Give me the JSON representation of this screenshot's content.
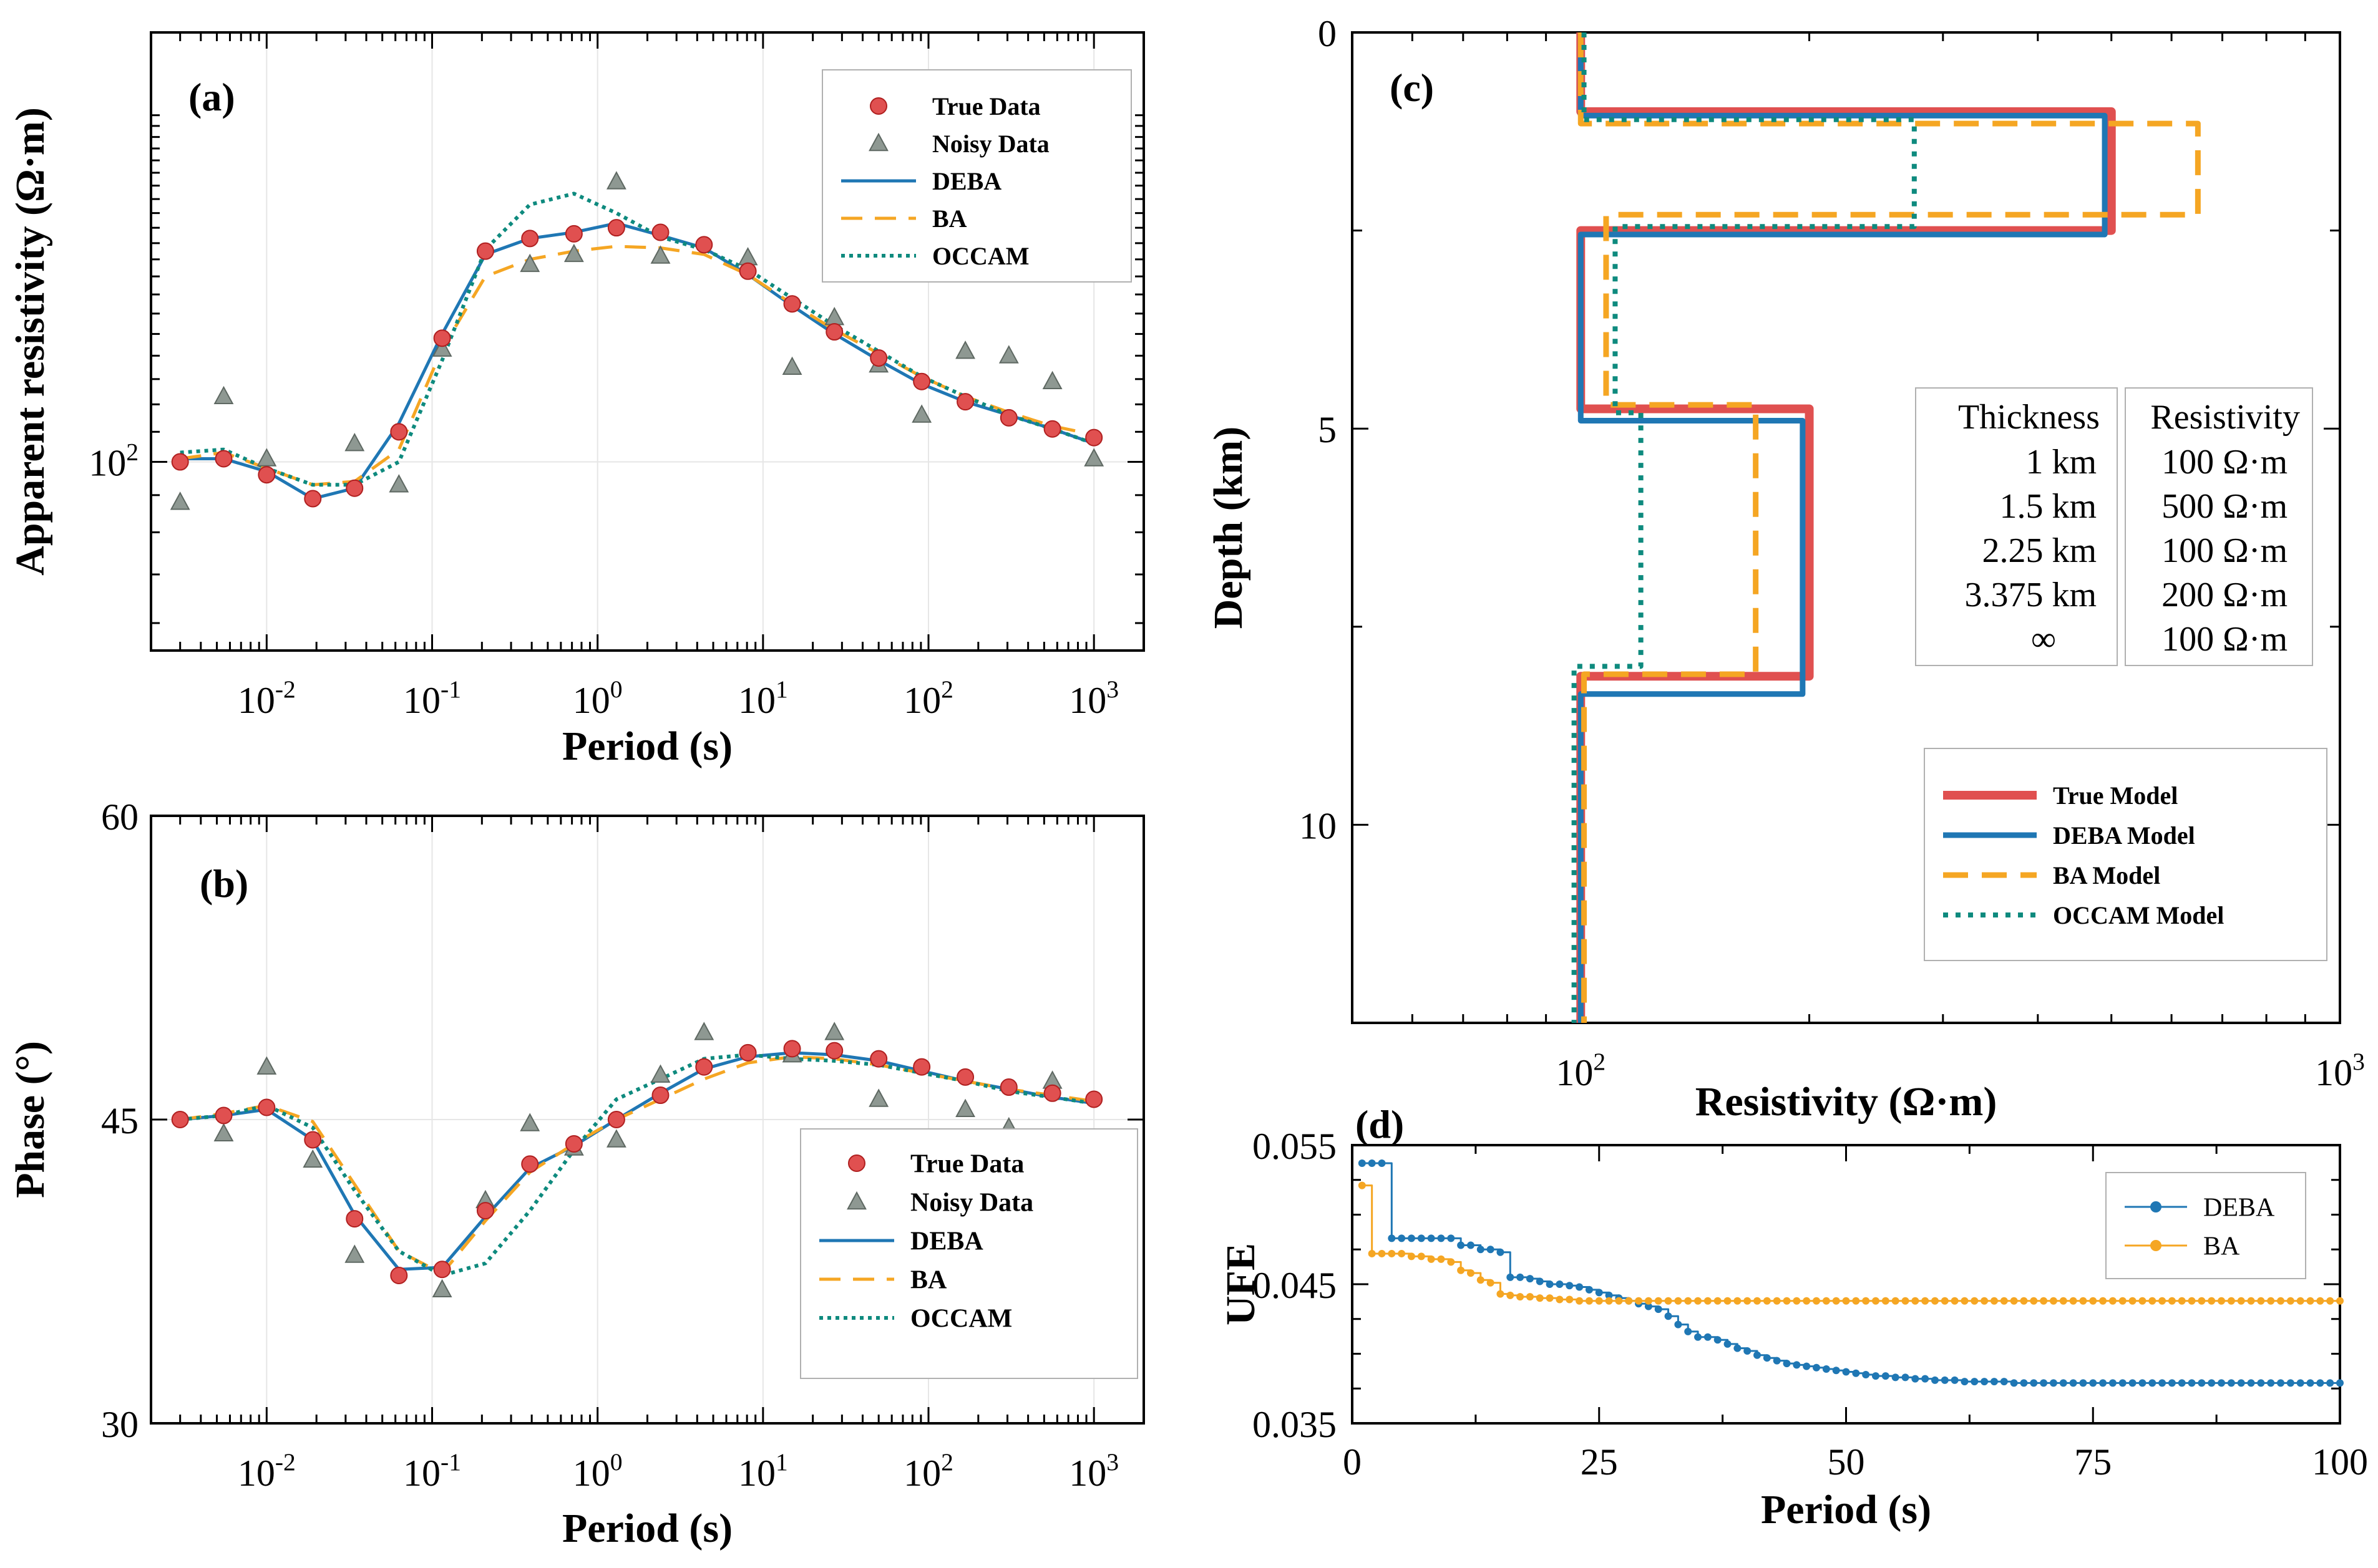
{
  "colors": {
    "true": "#e05050",
    "deba": "#1f77b4",
    "ba": "#f5a623",
    "occam": "#0e8a7e",
    "noisy": "#8e9892"
  },
  "chart_data": [
    {
      "panel_label": "(a)",
      "type": "line",
      "xlabel": "Period (s)",
      "ylabel": "Apparent resistivity (Ω·m)",
      "xscale": "log",
      "yscale": "log",
      "xlim": [
        0.002,
        2000
      ],
      "ylim": [
        55,
        390
      ],
      "x_tick_labels": [
        {
          "base": "10",
          "exp": "-2"
        },
        {
          "base": "10",
          "exp": "-1"
        },
        {
          "base": "10",
          "exp": "0"
        },
        {
          "base": "10",
          "exp": "1"
        },
        {
          "base": "10",
          "exp": "2"
        },
        {
          "base": "10",
          "exp": "3"
        }
      ],
      "y_tick_labels": [
        {
          "base": "10",
          "exp": "2"
        }
      ],
      "legend": [
        "True Data",
        "Noisy Data",
        "DEBA",
        "BA",
        "OCCAM"
      ],
      "x": [
        0.003,
        0.0055,
        0.01,
        0.019,
        0.034,
        0.063,
        0.115,
        0.21,
        0.39,
        0.72,
        1.3,
        2.4,
        4.4,
        8.1,
        15,
        27,
        50,
        91,
        167,
        306,
        561,
        1000
      ],
      "series": [
        {
          "name": "True Data",
          "values": [
            100,
            101,
            96,
            89,
            92,
            110,
            148,
            195,
            203,
            206,
            210,
            207,
            199,
            183,
            165,
            151,
            139,
            129,
            121,
            115,
            111,
            108
          ]
        },
        {
          "name": "Noisy Data",
          "values": [
            88,
            123,
            101,
            null,
            106,
            93,
            143,
            null,
            187,
            193,
            243,
            192,
            null,
            191,
            135,
            158,
            136,
            116,
            142,
            140,
            129,
            101
          ]
        },
        {
          "name": "DEBA",
          "values": [
            101,
            101,
            97,
            89,
            92,
            113,
            150,
            193,
            203,
            207,
            213,
            205,
            197,
            181,
            164,
            150,
            138,
            128,
            121,
            116,
            111,
            106
          ]
        },
        {
          "name": "BA",
          "values": [
            101,
            103,
            98,
            93,
            94,
            104,
            143,
            180,
            190,
            195,
            198,
            197,
            193,
            181,
            165,
            152,
            141,
            131,
            123,
            117,
            112,
            109
          ]
        },
        {
          "name": "OCCAM",
          "values": [
            103,
            104,
            98,
            93,
            93,
            100,
            138,
            196,
            226,
            234,
            220,
            204,
            196,
            184,
            168,
            154,
            142,
            131,
            123,
            116,
            111,
            106
          ]
        }
      ]
    },
    {
      "panel_label": "(b)",
      "type": "line",
      "xlabel": "Period (s)",
      "ylabel": "Phase (°)",
      "xscale": "log",
      "xlim": [
        0.002,
        2000
      ],
      "ylim": [
        30,
        60
      ],
      "x_tick_labels": [
        {
          "base": "10",
          "exp": "-2"
        },
        {
          "base": "10",
          "exp": "-1"
        },
        {
          "base": "10",
          "exp": "0"
        },
        {
          "base": "10",
          "exp": "1"
        },
        {
          "base": "10",
          "exp": "2"
        },
        {
          "base": "10",
          "exp": "3"
        }
      ],
      "y_tick_labels": [
        "30",
        "45",
        "60"
      ],
      "legend": [
        "True Data",
        "Noisy Data",
        "DEBA",
        "BA",
        "OCCAM"
      ],
      "x": [
        0.003,
        0.0055,
        0.01,
        0.019,
        0.034,
        0.063,
        0.115,
        0.21,
        0.39,
        0.72,
        1.3,
        2.4,
        4.4,
        8.1,
        15,
        27,
        50,
        91,
        167,
        306,
        561,
        1000
      ],
      "series": [
        {
          "name": "True Data",
          "values": [
            45,
            45.2,
            45.6,
            44,
            40.1,
            37.3,
            37.6,
            40.5,
            42.8,
            43.8,
            45,
            46.2,
            47.6,
            48.3,
            48.5,
            48.4,
            48,
            47.6,
            47.1,
            46.6,
            46.3,
            46
          ]
        },
        {
          "name": "Noisy Data",
          "values": [
            null,
            44.3,
            47.6,
            43,
            38.3,
            null,
            36.6,
            41,
            44.8,
            43.6,
            44,
            47.2,
            49.3,
            null,
            48.2,
            49.3,
            46,
            null,
            45.5,
            44.6,
            46.9,
            43.9
          ]
        },
        {
          "name": "DEBA",
          "values": [
            45,
            45.2,
            45.5,
            44,
            40.3,
            37.6,
            37.7,
            40.2,
            42.6,
            43.7,
            45,
            46.3,
            47.5,
            48.1,
            48.3,
            48.2,
            47.9,
            47.4,
            46.9,
            46.5,
            46.1,
            45.8
          ]
        },
        {
          "name": "BA",
          "values": [
            45,
            45.3,
            45.7,
            44.9,
            41.8,
            38.5,
            37.4,
            40,
            42.4,
            43.8,
            45,
            46,
            47,
            47.8,
            48.1,
            48,
            47.7,
            47.3,
            46.9,
            46.5,
            46.2,
            45.9
          ]
        },
        {
          "name": "OCCAM",
          "values": [
            45,
            45.2,
            45.7,
            44.6,
            41.5,
            38.5,
            37.3,
            37.9,
            40.5,
            43.5,
            46,
            47,
            48,
            48.2,
            48,
            47.9,
            47.7,
            47.3,
            46.9,
            46.4,
            46.1,
            45.8
          ]
        }
      ]
    },
    {
      "panel_label": "(c)",
      "type": "step",
      "xlabel": "Resistivity (Ω·m)",
      "ylabel": "Depth (km)",
      "xscale": "log",
      "xlim": [
        50,
        1000
      ],
      "ylim": [
        12.5,
        0
      ],
      "x_tick_labels": [
        {
          "base": "10",
          "exp": "2"
        },
        {
          "base": "10",
          "exp": "3"
        }
      ],
      "y_tick_labels": [
        "0",
        "5",
        "10"
      ],
      "legend": [
        "True Model",
        "DEBA Model",
        "BA Model",
        "OCCAM Model"
      ],
      "table": {
        "headers": [
          "Thickness",
          "Resistivity"
        ],
        "thickness": [
          "1 km",
          "1.5 km",
          "2.25 km",
          "3.375 km",
          "∞"
        ],
        "resistivity": [
          "100 Ω·m",
          "500 Ω·m",
          "100 Ω·m",
          "200 Ω·m",
          "100 Ω·m"
        ]
      },
      "series": [
        {
          "name": "True Model",
          "layers": [
            {
              "top": 0,
              "bottom": 1,
              "rho": 100
            },
            {
              "top": 1,
              "bottom": 2.5,
              "rho": 500
            },
            {
              "top": 2.5,
              "bottom": 4.75,
              "rho": 100
            },
            {
              "top": 4.75,
              "bottom": 8.125,
              "rho": 200
            },
            {
              "top": 8.125,
              "bottom": 12.5,
              "rho": 100
            }
          ]
        },
        {
          "name": "DEBA Model",
          "layers": [
            {
              "top": 0,
              "bottom": 1.05,
              "rho": 100
            },
            {
              "top": 1.05,
              "bottom": 2.55,
              "rho": 490
            },
            {
              "top": 2.55,
              "bottom": 4.9,
              "rho": 100
            },
            {
              "top": 4.9,
              "bottom": 8.35,
              "rho": 196
            },
            {
              "top": 8.35,
              "bottom": 12.5,
              "rho": 100
            }
          ]
        },
        {
          "name": "BA Model",
          "layers": [
            {
              "top": 0,
              "bottom": 1.15,
              "rho": 100
            },
            {
              "top": 1.15,
              "bottom": 2.3,
              "rho": 650
            },
            {
              "top": 2.3,
              "bottom": 4.7,
              "rho": 108
            },
            {
              "top": 4.7,
              "bottom": 8.1,
              "rho": 170
            },
            {
              "top": 8.1,
              "bottom": 12.5,
              "rho": 101
            }
          ]
        },
        {
          "name": "OCCAM Model",
          "layers": [
            {
              "top": 0,
              "bottom": 1.1,
              "rho": 101
            },
            {
              "top": 1.1,
              "bottom": 2.45,
              "rho": 275
            },
            {
              "top": 2.45,
              "bottom": 4.8,
              "rho": 111
            },
            {
              "top": 4.8,
              "bottom": 8.0,
              "rho": 120
            },
            {
              "top": 8.0,
              "bottom": 12.5,
              "rho": 98
            }
          ]
        }
      ]
    },
    {
      "panel_label": "(d)",
      "type": "line",
      "xlabel": "Period (s)",
      "ylabel": "UFE",
      "xlim": [
        0,
        100
      ],
      "ylim": [
        0.035,
        0.055
      ],
      "x_tick_labels": [
        "0",
        "25",
        "50",
        "75",
        "100"
      ],
      "y_tick_labels": [
        "0.035",
        "0.045",
        "0.055"
      ],
      "legend": [
        "DEBA",
        "BA"
      ],
      "series": [
        {
          "name": "DEBA",
          "x": [
            1,
            2,
            3,
            4,
            5,
            6,
            7,
            8,
            9,
            10,
            11,
            12,
            13,
            14,
            15,
            16,
            17,
            18,
            19,
            20,
            21,
            22,
            23,
            24,
            25,
            26,
            27,
            28,
            29,
            30,
            31,
            32,
            33,
            34,
            35,
            36,
            37,
            38,
            39,
            40,
            41,
            42,
            43,
            44,
            45,
            46,
            47,
            48,
            49,
            50,
            51,
            52,
            53,
            54,
            55,
            56,
            57,
            58,
            59,
            60,
            61,
            62,
            63,
            64,
            65,
            66,
            67,
            68,
            69,
            70,
            71,
            72,
            73,
            74,
            75,
            76,
            77,
            78,
            79,
            80,
            81,
            82,
            83,
            84,
            85,
            86,
            87,
            88,
            89,
            90,
            91,
            92,
            93,
            94,
            95,
            96,
            97,
            98,
            99,
            100
          ],
          "values": [
            0.0537,
            0.0537,
            0.0537,
            0.0483,
            0.0483,
            0.0483,
            0.0483,
            0.0483,
            0.0483,
            0.0483,
            0.0478,
            0.0478,
            0.0475,
            0.0475,
            0.0473,
            0.0455,
            0.0455,
            0.0454,
            0.0452,
            0.045,
            0.045,
            0.0449,
            0.0448,
            0.0446,
            0.0444,
            0.0442,
            0.044,
            0.0438,
            0.0436,
            0.0434,
            0.0432,
            0.0427,
            0.0421,
            0.0416,
            0.0412,
            0.0412,
            0.041,
            0.0407,
            0.0404,
            0.0402,
            0.0399,
            0.0397,
            0.0395,
            0.0393,
            0.0392,
            0.0391,
            0.039,
            0.0389,
            0.0388,
            0.0387,
            0.0386,
            0.0385,
            0.0384,
            0.0384,
            0.0383,
            0.0383,
            0.0382,
            0.0382,
            0.0381,
            0.0381,
            0.0381,
            0.038,
            0.038,
            0.038,
            0.038,
            0.038,
            0.0379,
            0.0379,
            0.0379,
            0.0379,
            0.0379,
            0.0379,
            0.0379,
            0.0379,
            0.0379,
            0.0379,
            0.0379,
            0.0379,
            0.0379,
            0.0379,
            0.0379,
            0.0379,
            0.0379,
            0.0379,
            0.0379,
            0.0379,
            0.0379,
            0.0379,
            0.0379,
            0.0379,
            0.0379,
            0.0379,
            0.0379,
            0.0379,
            0.0379,
            0.0379,
            0.0379,
            0.0379,
            0.0379,
            0.0379
          ]
        },
        {
          "name": "BA",
          "x": [
            1,
            2,
            3,
            4,
            5,
            6,
            7,
            8,
            9,
            10,
            11,
            12,
            13,
            14,
            15,
            16,
            17,
            18,
            19,
            20,
            21,
            22,
            23,
            24,
            25,
            26,
            27,
            28,
            29,
            30,
            31,
            32,
            33,
            34,
            35,
            36,
            37,
            38,
            39,
            40,
            41,
            42,
            43,
            44,
            45,
            46,
            47,
            48,
            49,
            50,
            51,
            52,
            53,
            54,
            55,
            56,
            57,
            58,
            59,
            60,
            61,
            62,
            63,
            64,
            65,
            66,
            67,
            68,
            69,
            70,
            71,
            72,
            73,
            74,
            75,
            76,
            77,
            78,
            79,
            80,
            81,
            82,
            83,
            84,
            85,
            86,
            87,
            88,
            89,
            90,
            91,
            92,
            93,
            94,
            95,
            96,
            97,
            98,
            99,
            100
          ],
          "values": [
            0.0521,
            0.0472,
            0.0472,
            0.0472,
            0.0472,
            0.047,
            0.047,
            0.0468,
            0.0468,
            0.0466,
            0.046,
            0.0458,
            0.0453,
            0.0451,
            0.0443,
            0.0442,
            0.0441,
            0.0441,
            0.044,
            0.044,
            0.0439,
            0.0439,
            0.0438,
            0.0438,
            0.0438,
            0.0438,
            0.0438,
            0.0438,
            0.0438,
            0.0438,
            0.0438,
            0.0438,
            0.0438,
            0.0438,
            0.0438,
            0.0438,
            0.0438,
            0.0438,
            0.0438,
            0.0438,
            0.0438,
            0.0438,
            0.0438,
            0.0438,
            0.0438,
            0.0438,
            0.0438,
            0.0438,
            0.0438,
            0.0438,
            0.0438,
            0.0438,
            0.0438,
            0.0438,
            0.0438,
            0.0438,
            0.0438,
            0.0438,
            0.0438,
            0.0438,
            0.0438,
            0.0438,
            0.0438,
            0.0438,
            0.0438,
            0.0438,
            0.0438,
            0.0438,
            0.0438,
            0.0438,
            0.0438,
            0.0438,
            0.0438,
            0.0438,
            0.0438,
            0.0438,
            0.0438,
            0.0438,
            0.0438,
            0.0438,
            0.0438,
            0.0438,
            0.0438,
            0.0438,
            0.0438,
            0.0438,
            0.0438,
            0.0438,
            0.0438,
            0.0438,
            0.0438,
            0.0438,
            0.0438,
            0.0438,
            0.0438,
            0.0438,
            0.0438,
            0.0438,
            0.0438,
            0.0438
          ]
        }
      ]
    }
  ]
}
